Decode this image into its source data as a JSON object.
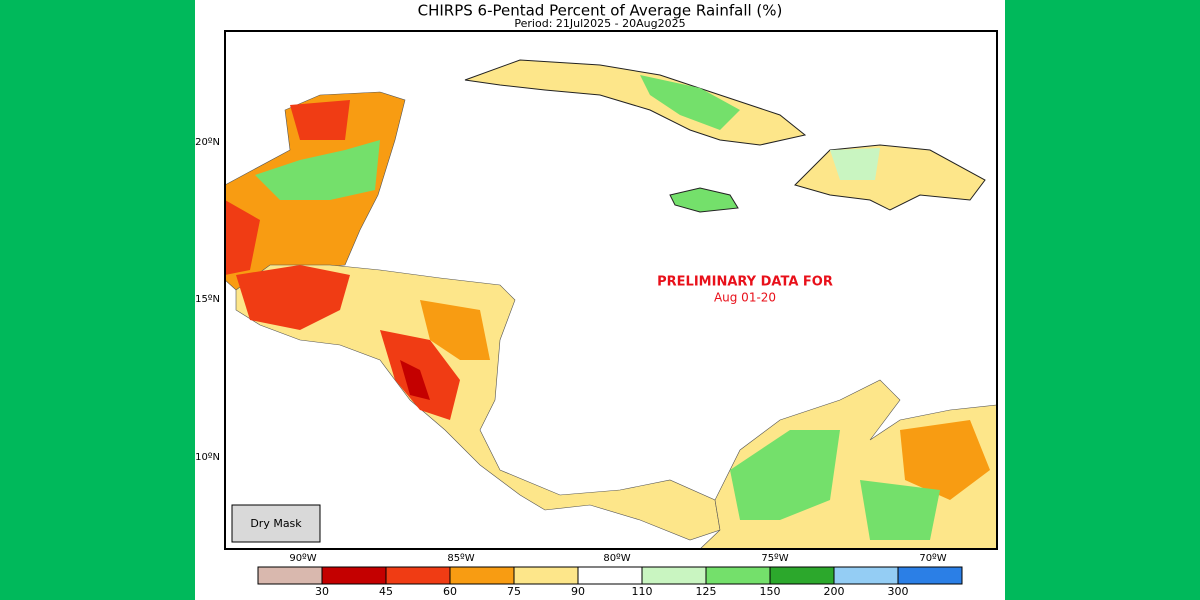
{
  "header": {
    "title": "CHIRPS 6-Pentad Percent of Average Rainfall (%)",
    "subtitle": "Period: 21Jul2025 - 20Aug2025"
  },
  "map": {
    "longitude_labels": [
      "90ºW",
      "85ºW",
      "80ºW",
      "75ºW",
      "70ºW"
    ],
    "latitude_labels": [
      "20ºN",
      "15ºN",
      "10ºN"
    ],
    "annotation": {
      "line1": "PRELIMINARY DATA FOR",
      "line2": "Aug 01-20"
    },
    "mask_label": "Dry Mask"
  },
  "legend": {
    "colors": [
      "#d9b8ae",
      "#c40000",
      "#f03c14",
      "#f89c12",
      "#fde68a",
      "#ffffff",
      "#c9f5c1",
      "#74e06b",
      "#2ca82c",
      "#94cdf4",
      "#2b7fe6"
    ],
    "ticks": [
      30,
      45,
      60,
      75,
      90,
      110,
      125,
      150,
      200,
      300
    ]
  }
}
